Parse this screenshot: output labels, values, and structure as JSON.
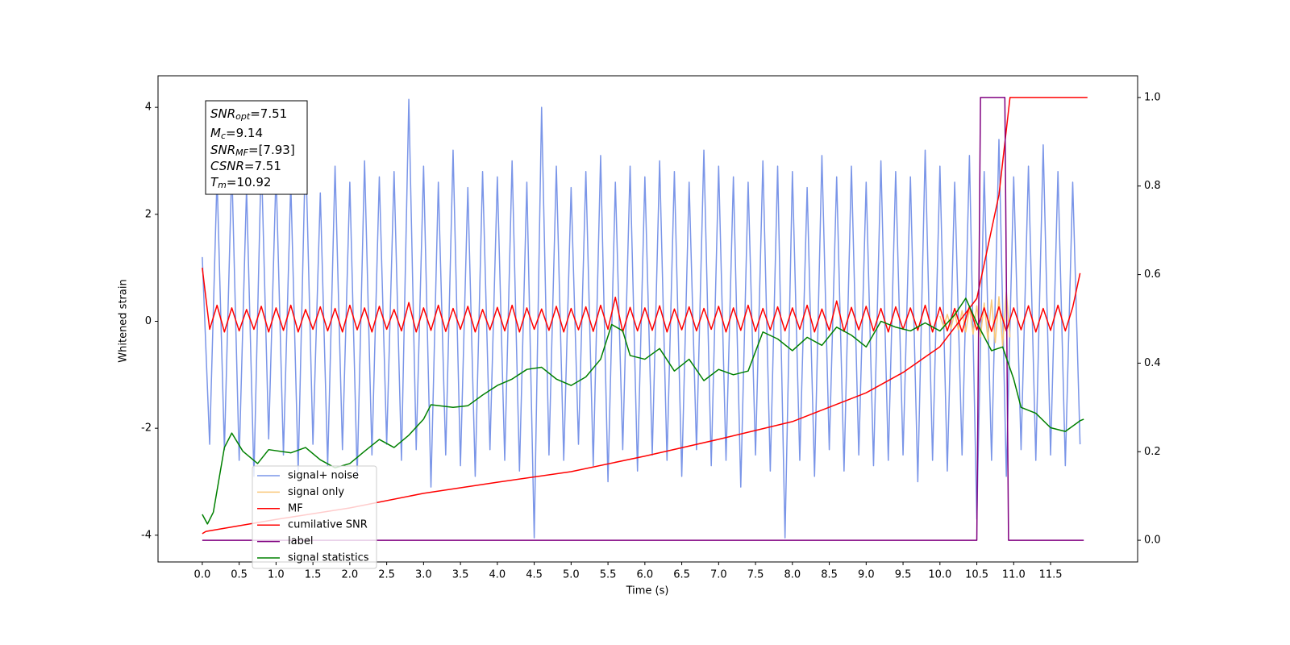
{
  "chart_data": {
    "type": "line",
    "xlabel": "Time (s)",
    "ylabel": "Whitened strain",
    "xlim": [
      -0.6,
      12.68
    ],
    "ylim": [
      -4.5,
      4.59
    ],
    "y2lim": [
      -0.049,
      1.049
    ],
    "xticks": [
      {
        "value": 0,
        "label": "0.0"
      },
      {
        "value": 0.5,
        "label": "0.5"
      },
      {
        "value": 1,
        "label": "1.0"
      },
      {
        "value": 1.5,
        "label": "1.5"
      },
      {
        "value": 2,
        "label": "2.0"
      },
      {
        "value": 2.5,
        "label": "2.5"
      },
      {
        "value": 3,
        "label": "3.0"
      },
      {
        "value": 3.5,
        "label": "3.5"
      },
      {
        "value": 4,
        "label": "4.0"
      },
      {
        "value": 4.5,
        "label": "4.5"
      },
      {
        "value": 5,
        "label": "5.0"
      },
      {
        "value": 5.5,
        "label": "5.5"
      },
      {
        "value": 6,
        "label": "6.0"
      },
      {
        "value": 6.5,
        "label": "6.5"
      },
      {
        "value": 7,
        "label": "7.0"
      },
      {
        "value": 7.5,
        "label": "7.5"
      },
      {
        "value": 8,
        "label": "8.0"
      },
      {
        "value": 8.5,
        "label": "8.5"
      },
      {
        "value": 9,
        "label": "9.0"
      },
      {
        "value": 9.5,
        "label": "9.5"
      },
      {
        "value": 10,
        "label": "10.0"
      },
      {
        "value": 10.5,
        "label": "10.5"
      },
      {
        "value": 11,
        "label": "11.0"
      },
      {
        "value": 11.5,
        "label": "11.5"
      }
    ],
    "yticks": [
      -4,
      -2,
      0,
      2,
      4
    ],
    "y2ticks": [
      {
        "value": 0,
        "label": "0.0"
      },
      {
        "value": 0.2,
        "label": "0.2"
      },
      {
        "value": 0.4,
        "label": "0.4"
      },
      {
        "value": 0.6,
        "label": "0.6"
      },
      {
        "value": 0.8,
        "label": "0.8"
      },
      {
        "value": 1,
        "label": "1.0"
      }
    ],
    "grid": false,
    "legend": "lower left",
    "annotations": [
      {
        "main": "SNR",
        "sub": "opt",
        "text": "=7.51"
      },
      {
        "main": "M",
        "sub": "c",
        "text": "=9.14"
      },
      {
        "main": "SNR",
        "sub": "MF",
        "text": "=[7.93]"
      },
      {
        "main": "CSNR",
        "text": "=7.51"
      },
      {
        "main": "T",
        "sub": "m",
        "text": "=10.92"
      }
    ],
    "x": [
      0,
      0.1,
      0.2,
      0.3,
      0.4,
      0.5,
      0.6,
      0.7,
      0.8,
      0.9,
      1,
      1.1,
      1.2,
      1.3,
      1.4,
      1.5,
      1.6,
      1.7,
      1.8,
      1.9,
      2,
      2.1,
      2.2,
      2.3,
      2.4,
      2.5,
      2.6,
      2.7,
      2.8,
      2.9,
      3,
      3.1,
      3.2,
      3.3,
      3.4,
      3.5,
      3.6,
      3.7,
      3.8,
      3.9,
      4,
      4.1,
      4.2,
      4.3,
      4.4,
      4.5,
      4.6,
      4.7,
      4.8,
      4.9,
      5,
      5.1,
      5.2,
      5.3,
      5.4,
      5.5,
      5.6,
      5.7,
      5.8,
      5.9,
      6,
      6.1,
      6.2,
      6.3,
      6.4,
      6.5,
      6.6,
      6.7,
      6.8,
      6.9,
      7,
      7.1,
      7.2,
      7.3,
      7.4,
      7.5,
      7.6,
      7.7,
      7.8,
      7.9,
      8,
      8.1,
      8.2,
      8.3,
      8.4,
      8.5,
      8.6,
      8.7,
      8.8,
      8.9,
      9,
      9.1,
      9.2,
      9.3,
      9.4,
      9.5,
      9.6,
      9.7,
      9.8,
      9.9,
      10,
      10.1,
      10.2,
      10.3,
      10.4,
      10.5,
      10.6,
      10.7,
      10.8,
      10.9,
      11,
      11.1,
      11.2,
      11.3,
      11.4,
      11.5,
      11.6,
      11.7,
      11.8,
      11.9
    ],
    "series": [
      {
        "name": "signal+ noise",
        "color": "#7a95e8",
        "values": [
          1.2,
          -2.3,
          2.7,
          -2.4,
          2.9,
          -2.6,
          2.5,
          -2.9,
          3.1,
          -2.2,
          2.8,
          -2.5,
          2.6,
          -2.8,
          3.3,
          -2.3,
          2.4,
          -2.7,
          2.9,
          -2.4,
          2.6,
          -2.9,
          3.0,
          -2.5,
          2.7,
          -2.3,
          2.8,
          -2.6,
          4.15,
          -2.4,
          2.9,
          -3.1,
          2.6,
          -2.5,
          3.2,
          -2.7,
          2.5,
          -2.9,
          2.8,
          -2.4,
          2.7,
          -2.6,
          3.0,
          -2.8,
          2.6,
          -4.05,
          4.0,
          -2.5,
          2.9,
          -2.6,
          2.5,
          -2.3,
          2.8,
          -2.7,
          3.1,
          -3.0,
          2.6,
          -2.4,
          2.9,
          -2.8,
          2.7,
          -2.5,
          3.0,
          -2.6,
          2.8,
          -2.9,
          2.6,
          -2.4,
          3.2,
          -2.7,
          2.9,
          -2.6,
          2.7,
          -3.1,
          2.6,
          -2.5,
          3.0,
          -2.8,
          2.9,
          -4.05,
          2.8,
          -2.6,
          2.5,
          -2.9,
          3.1,
          -2.4,
          2.7,
          -2.8,
          2.9,
          -2.5,
          2.6,
          -2.7,
          3.0,
          -2.6,
          2.8,
          -2.5,
          2.7,
          -3.0,
          3.2,
          -2.6,
          2.9,
          -2.8,
          2.6,
          -2.5,
          3.1,
          -3.7,
          2.8,
          -2.6,
          3.4,
          -2.9,
          2.7,
          -2.4,
          2.9,
          -2.6,
          3.3,
          -2.5,
          2.8,
          -2.7,
          2.6,
          -2.3
        ]
      },
      {
        "name": "signal only",
        "color": "#f9c87a",
        "x": [
          10,
          10.05,
          10.1,
          10.15,
          10.2,
          10.25,
          10.3,
          10.35,
          10.4,
          10.45,
          10.5,
          10.55,
          10.6,
          10.65,
          10.7,
          10.75,
          10.8,
          10.85,
          10.9,
          10.95
        ],
        "values": [
          0.1,
          -0.1,
          0.13,
          -0.13,
          0.16,
          -0.16,
          0.2,
          -0.2,
          0.24,
          -0.24,
          0.29,
          -0.29,
          0.34,
          -0.34,
          0.4,
          -0.4,
          0.46,
          -0.46,
          0.55,
          -0.3
        ]
      },
      {
        "name": "MF",
        "color": "red",
        "values": [
          1.0,
          -0.15,
          0.3,
          -0.2,
          0.25,
          -0.18,
          0.22,
          -0.15,
          0.28,
          -0.2,
          0.25,
          -0.17,
          0.3,
          -0.2,
          0.22,
          -0.15,
          0.27,
          -0.18,
          0.24,
          -0.2,
          0.3,
          -0.16,
          0.25,
          -0.2,
          0.28,
          -0.15,
          0.22,
          -0.18,
          0.35,
          -0.2,
          0.25,
          -0.17,
          0.3,
          -0.19,
          0.24,
          -0.15,
          0.28,
          -0.2,
          0.22,
          -0.16,
          0.26,
          -0.18,
          0.3,
          -0.2,
          0.25,
          -0.15,
          0.23,
          -0.17,
          0.28,
          -0.2,
          0.24,
          -0.16,
          0.27,
          -0.19,
          0.3,
          -0.15,
          0.45,
          -0.2,
          0.26,
          -0.18,
          0.25,
          -0.17,
          0.29,
          -0.2,
          0.23,
          -0.16,
          0.27,
          -0.18,
          0.24,
          -0.15,
          0.28,
          -0.2,
          0.25,
          -0.17,
          0.3,
          -0.19,
          0.24,
          -0.16,
          0.27,
          -0.18,
          0.25,
          -0.15,
          0.3,
          -0.2,
          0.23,
          -0.17,
          0.38,
          -0.19,
          0.26,
          -0.16,
          0.28,
          -0.18,
          0.24,
          -0.2,
          0.27,
          -0.15,
          0.25,
          -0.17,
          0.3,
          -0.2,
          0.26,
          -0.18,
          0.24,
          -0.2,
          0.28,
          -0.16,
          0.25,
          -0.19,
          0.27,
          -0.18,
          0.25,
          -0.16,
          0.29,
          -0.2,
          0.24,
          -0.17,
          0.3,
          -0.18,
          0.26,
          0.9
        ]
      },
      {
        "name": "cumilative SNR",
        "color": "red",
        "axis": "y2",
        "x": [
          0,
          0.05,
          1,
          2,
          3,
          4,
          5,
          6,
          7,
          8,
          9,
          9.5,
          10,
          10.5,
          10.8,
          10.95,
          12
        ],
        "values": [
          0.015,
          0.02,
          0.047,
          0.073,
          0.106,
          0.131,
          0.155,
          0.19,
          0.228,
          0.268,
          0.333,
          0.379,
          0.437,
          0.546,
          0.78,
          1.0,
          1.0
        ]
      },
      {
        "name": "label",
        "color": "purple",
        "axis": "y2",
        "x": [
          0,
          10.5,
          10.55,
          10.88,
          10.93,
          11.95
        ],
        "values": [
          0,
          0,
          1,
          1,
          0,
          0
        ]
      },
      {
        "name": "signal statistics",
        "color": "green",
        "x": [
          0,
          0.07,
          0.15,
          0.3,
          0.4,
          0.55,
          0.75,
          0.9,
          1.2,
          1.4,
          1.6,
          1.8,
          2,
          2.2,
          2.4,
          2.6,
          2.8,
          3,
          3.1,
          3.4,
          3.6,
          3.8,
          4,
          4.2,
          4.4,
          4.6,
          4.8,
          5,
          5.2,
          5.4,
          5.55,
          5.7,
          5.8,
          6,
          6.2,
          6.4,
          6.6,
          6.8,
          7,
          7.2,
          7.4,
          7.6,
          7.8,
          8,
          8.2,
          8.4,
          8.6,
          8.8,
          9,
          9.2,
          9.4,
          9.6,
          9.8,
          10,
          10.2,
          10.35,
          10.5,
          10.7,
          10.85,
          11,
          11.1,
          11.3,
          11.5,
          11.7,
          11.9,
          11.95
        ],
        "values": [
          -3.61,
          -3.79,
          -3.57,
          -2.36,
          -2.09,
          -2.43,
          -2.66,
          -2.4,
          -2.46,
          -2.36,
          -2.59,
          -2.74,
          -2.66,
          -2.43,
          -2.21,
          -2.36,
          -2.13,
          -1.83,
          -1.56,
          -1.61,
          -1.58,
          -1.38,
          -1.2,
          -1.08,
          -0.9,
          -0.86,
          -1.08,
          -1.2,
          -1.04,
          -0.71,
          -0.06,
          -0.18,
          -0.64,
          -0.71,
          -0.51,
          -0.93,
          -0.71,
          -1.11,
          -0.9,
          -1.0,
          -0.93,
          -0.2,
          -0.33,
          -0.55,
          -0.3,
          -0.45,
          -0.11,
          -0.26,
          -0.48,
          0,
          -0.11,
          -0.18,
          -0.03,
          -0.18,
          0.12,
          0.43,
          -0.03,
          -0.55,
          -0.48,
          -1.08,
          -1.61,
          -1.72,
          -1.99,
          -2.06,
          -1.86,
          -1.83
        ]
      }
    ]
  }
}
